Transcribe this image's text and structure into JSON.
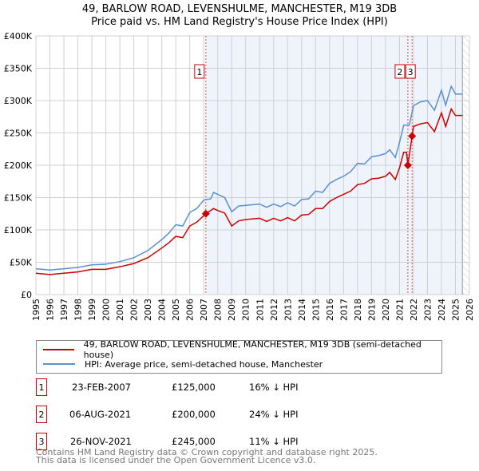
{
  "chart_data": {
    "type": "line",
    "title": "49, BARLOW ROAD, LEVENSHULME, MANCHESTER, M19 3DB",
    "subtitle": "Price paid vs. HM Land Registry's House Price Index (HPI)",
    "xlim": [
      1995,
      2026
    ],
    "ylim": [
      0,
      400000
    ],
    "yticks": [
      {
        "v": 0,
        "label": "£0"
      },
      {
        "v": 50000,
        "label": "£50K"
      },
      {
        "v": 100000,
        "label": "£100K"
      },
      {
        "v": 150000,
        "label": "£150K"
      },
      {
        "v": 200000,
        "label": "£200K"
      },
      {
        "v": 250000,
        "label": "£250K"
      },
      {
        "v": 300000,
        "label": "£300K"
      },
      {
        "v": 350000,
        "label": "£350K"
      },
      {
        "v": 400000,
        "label": "£400K"
      }
    ],
    "xticks": [
      "1995",
      "1996",
      "1997",
      "1998",
      "1999",
      "2000",
      "2001",
      "2002",
      "2003",
      "2004",
      "2005",
      "2006",
      "2007",
      "2008",
      "2009",
      "2010",
      "2011",
      "2012",
      "2013",
      "2014",
      "2015",
      "2016",
      "2017",
      "2018",
      "2019",
      "2020",
      "2021",
      "2022",
      "2023",
      "2024",
      "2025",
      "2026"
    ],
    "grid": true,
    "shaded_from": 2007.15,
    "hatched_from": 2025.5,
    "series": [
      {
        "name": "49, BARLOW ROAD, LEVENSHULME, MANCHESTER, M19 3DB (semi-detached house)",
        "color": "#cc0000",
        "x": [
          1995,
          1996,
          1997,
          1998,
          1999,
          2000,
          2001,
          2002,
          2003,
          2004,
          2004.5,
          2005,
          2005.5,
          2006,
          2006.5,
          2007.15,
          2007.7,
          2008,
          2008.5,
          2009,
          2009.5,
          2010,
          2011,
          2011.5,
          2012,
          2012.5,
          2013,
          2013.5,
          2014,
          2014.5,
          2015,
          2015.5,
          2016,
          2016.5,
          2017,
          2017.5,
          2018,
          2018.5,
          2019,
          2019.5,
          2020,
          2020.3,
          2020.7,
          2021,
          2021.3,
          2021.5,
          2021.6,
          2021.9,
          2022,
          2022.5,
          2023,
          2023.5,
          2024,
          2024.3,
          2024.7,
          2025,
          2025.5
        ],
        "y": [
          33,
          31,
          33,
          35,
          39,
          39,
          43,
          48,
          57,
          72,
          80,
          90,
          88,
          106,
          112,
          125,
          133,
          130,
          126,
          106,
          114,
          116,
          118,
          113,
          118,
          114,
          119,
          114,
          123,
          124,
          133,
          133,
          144,
          150,
          155,
          160,
          170,
          172,
          179,
          180,
          183,
          189,
          178,
          196,
          220,
          220,
          200,
          245,
          260,
          264,
          266,
          252,
          281,
          260,
          287,
          277,
          277
        ]
      },
      {
        "name": "HPI: Average price, semi-detached house, Manchester",
        "color": "#5b8fd0",
        "x": [
          1995,
          1996,
          1997,
          1998,
          1999,
          2000,
          2001,
          2002,
          2003,
          2004,
          2004.5,
          2005,
          2005.5,
          2006,
          2006.5,
          2007,
          2007.5,
          2007.7,
          2008,
          2008.5,
          2009,
          2009.5,
          2010,
          2011,
          2011.5,
          2012,
          2012.5,
          2013,
          2013.5,
          2014,
          2014.5,
          2015,
          2015.5,
          2016,
          2016.5,
          2017,
          2017.5,
          2018,
          2018.5,
          2019,
          2019.5,
          2020,
          2020.3,
          2020.7,
          2021,
          2021.3,
          2021.7,
          2022,
          2022.5,
          2023,
          2023.5,
          2024,
          2024.3,
          2024.7,
          2025,
          2025.5
        ],
        "y": [
          40,
          38,
          40,
          42,
          46,
          47,
          51,
          57,
          68,
          85,
          95,
          108,
          106,
          127,
          133,
          146,
          148,
          158,
          155,
          150,
          128,
          137,
          138,
          140,
          135,
          140,
          136,
          142,
          137,
          147,
          148,
          160,
          158,
          172,
          178,
          183,
          190,
          203,
          202,
          213,
          215,
          218,
          224,
          212,
          235,
          262,
          262,
          292,
          298,
          300,
          285,
          316,
          293,
          322,
          310,
          310
        ]
      }
    ],
    "y_unit": "thousands GBP",
    "sales": [
      {
        "n": "1",
        "x": 2007.15,
        "price": 125000,
        "date": "23-FEB-2007",
        "price_label": "£125,000",
        "hpi": "16% ↓ HPI"
      },
      {
        "n": "2",
        "x": 2021.6,
        "price": 200000,
        "date": "06-AUG-2021",
        "price_label": "£200,000",
        "hpi": "24% ↓ HPI"
      },
      {
        "n": "3",
        "x": 2021.9,
        "price": 245000,
        "date": "26-NOV-2021",
        "price_label": "£245,000",
        "hpi": "11% ↓ HPI"
      }
    ]
  },
  "footer": [
    "Contains HM Land Registry data © Crown copyright and database right 2025.",
    "This data is licensed under the Open Government Licence v3.0."
  ]
}
